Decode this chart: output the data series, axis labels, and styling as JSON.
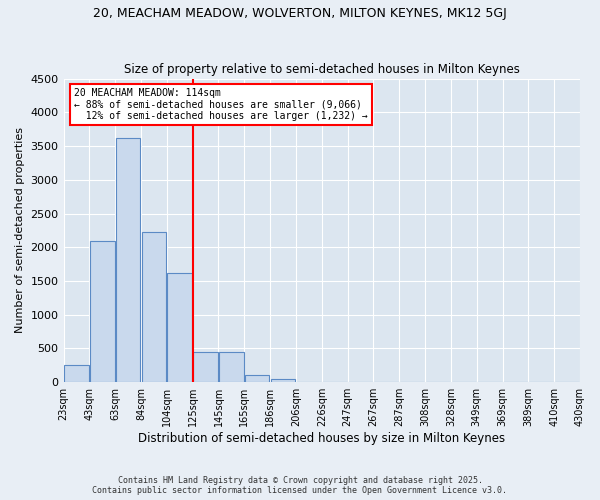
{
  "title1": "20, MEACHAM MEADOW, WOLVERTON, MILTON KEYNES, MK12 5GJ",
  "title2": "Size of property relative to semi-detached houses in Milton Keynes",
  "xlabel": "Distribution of semi-detached houses by size in Milton Keynes",
  "ylabel": "Number of semi-detached properties",
  "tick_labels": [
    "23sqm",
    "43sqm",
    "63sqm",
    "84sqm",
    "104sqm",
    "125sqm",
    "145sqm",
    "165sqm",
    "186sqm",
    "206sqm",
    "226sqm",
    "247sqm",
    "267sqm",
    "287sqm",
    "308sqm",
    "328sqm",
    "349sqm",
    "369sqm",
    "389sqm",
    "410sqm",
    "430sqm"
  ],
  "bar_values": [
    250,
    2100,
    3620,
    2230,
    1620,
    450,
    450,
    100,
    50,
    0,
    0,
    0,
    0,
    0,
    0,
    0,
    0,
    0,
    0,
    0
  ],
  "bar_color": "#c9d9ed",
  "bar_edge_color": "#5b8ac5",
  "vline_pos": 4.5,
  "vline_color": "red",
  "annotation_text": "20 MEACHAM MEADOW: 114sqm\n← 88% of semi-detached houses are smaller (9,066)\n  12% of semi-detached houses are larger (1,232) →",
  "annotation_box_color": "white",
  "annotation_box_edge": "red",
  "ylim": [
    0,
    4500
  ],
  "yticks": [
    0,
    500,
    1000,
    1500,
    2000,
    2500,
    3000,
    3500,
    4000,
    4500
  ],
  "footer1": "Contains HM Land Registry data © Crown copyright and database right 2025.",
  "footer2": "Contains public sector information licensed under the Open Government Licence v3.0.",
  "bg_color": "#e8eef5",
  "plot_bg_color": "#dce6f0"
}
